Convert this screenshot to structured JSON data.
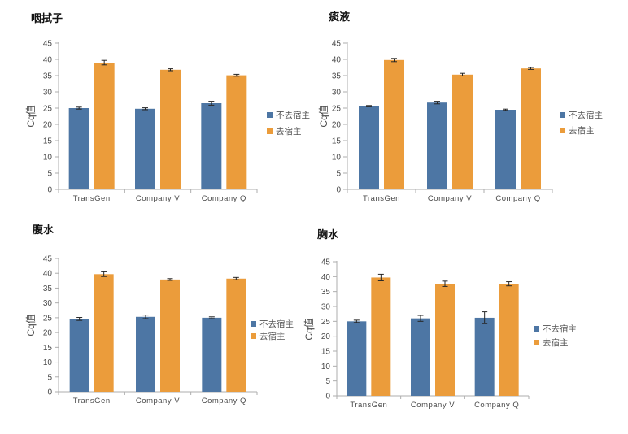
{
  "page": {
    "background": "#ffffff"
  },
  "colors": {
    "series_blue": "#4d76a4",
    "series_orange": "#eb9c3b",
    "axis_line": "#adadad",
    "error_bar": "#262626",
    "tick_text": "#4a4a4a",
    "legend_text": "#545454",
    "title_text": "#141414"
  },
  "chart_data": [
    {
      "id": "throat-swab",
      "type": "bar",
      "title": "咽拭子",
      "ylabel": "Cq值",
      "ylim": [
        0,
        45
      ],
      "yticks": [
        0,
        5,
        10,
        15,
        20,
        25,
        30,
        35,
        40,
        45
      ],
      "categories": [
        "TransGen",
        "Company V",
        "Company Q"
      ],
      "legend_position": "right",
      "grid": false,
      "series": [
        {
          "name": "不去宿主",
          "color": "#4d76a4",
          "values": [
            25.0,
            24.8,
            26.5
          ],
          "errors": [
            0.3,
            0.3,
            0.6
          ]
        },
        {
          "name": "去宿主",
          "color": "#eb9c3b",
          "values": [
            39.0,
            36.8,
            35.1
          ],
          "errors": [
            0.7,
            0.3,
            0.3
          ]
        }
      ]
    },
    {
      "id": "sputum",
      "type": "bar",
      "title": "痰液",
      "ylabel": "Cq值",
      "ylim": [
        0,
        45
      ],
      "yticks": [
        0,
        5,
        10,
        15,
        20,
        25,
        30,
        35,
        40,
        45
      ],
      "categories": [
        "TransGen",
        "Company V",
        "Company Q"
      ],
      "legend_position": "right",
      "grid": false,
      "series": [
        {
          "name": "不去宿主",
          "color": "#4d76a4",
          "values": [
            25.6,
            26.7,
            24.5
          ],
          "errors": [
            0.2,
            0.4,
            0.2
          ]
        },
        {
          "name": "去宿主",
          "color": "#eb9c3b",
          "values": [
            39.8,
            35.3,
            37.2
          ],
          "errors": [
            0.5,
            0.4,
            0.3
          ]
        }
      ]
    },
    {
      "id": "ascites",
      "type": "bar",
      "title": "腹水",
      "ylabel": "Cq值",
      "ylim": [
        0,
        45
      ],
      "yticks": [
        0,
        5,
        10,
        15,
        20,
        25,
        30,
        35,
        40,
        45
      ],
      "categories": [
        "TransGen",
        "Company V",
        "Company Q"
      ],
      "legend_position": "right",
      "grid": false,
      "series": [
        {
          "name": "不去宿主",
          "color": "#4d76a4",
          "values": [
            24.6,
            25.3,
            25.0
          ],
          "errors": [
            0.5,
            0.6,
            0.3
          ]
        },
        {
          "name": "去宿主",
          "color": "#eb9c3b",
          "values": [
            39.7,
            37.9,
            38.2
          ],
          "errors": [
            0.8,
            0.3,
            0.4
          ]
        }
      ]
    },
    {
      "id": "pleural-fluid",
      "type": "bar",
      "title": "胸水",
      "ylabel": "Cq值",
      "ylim": [
        0,
        45
      ],
      "yticks": [
        0,
        5,
        10,
        15,
        20,
        25,
        30,
        35,
        40,
        45
      ],
      "categories": [
        "TransGen",
        "Company V",
        "Company Q"
      ],
      "legend_position": "right",
      "grid": false,
      "series": [
        {
          "name": "不去宿主",
          "color": "#4d76a4",
          "values": [
            25.0,
            26.0,
            26.2
          ],
          "errors": [
            0.4,
            1.0,
            2.0
          ]
        },
        {
          "name": "去宿主",
          "color": "#eb9c3b",
          "values": [
            39.7,
            37.6,
            37.6
          ],
          "errors": [
            1.1,
            0.9,
            0.7
          ]
        }
      ]
    }
  ]
}
